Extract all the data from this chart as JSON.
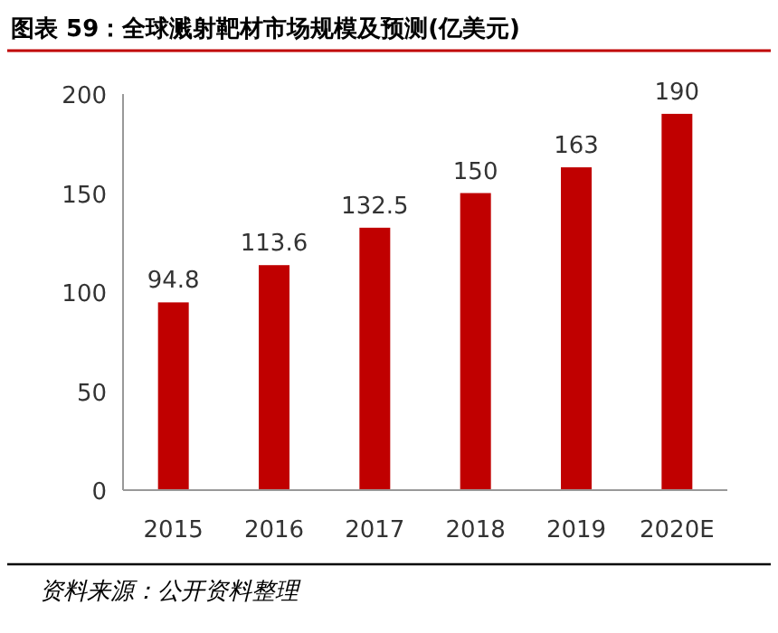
{
  "chart_data": {
    "type": "bar",
    "title": "图表 59：全球溅射靶材市场规模及预测(亿美元)",
    "categories": [
      "2015",
      "2016",
      "2017",
      "2018",
      "2019",
      "2020E"
    ],
    "values": [
      94.8,
      113.6,
      132.5,
      150,
      163,
      190
    ],
    "color": "#c00000",
    "ylim": [
      0,
      200
    ],
    "yticks": [
      0,
      50,
      100,
      150,
      200
    ],
    "data_labels": true,
    "grid": false,
    "annotations": [
      "资料来源：公开资料整理"
    ]
  }
}
